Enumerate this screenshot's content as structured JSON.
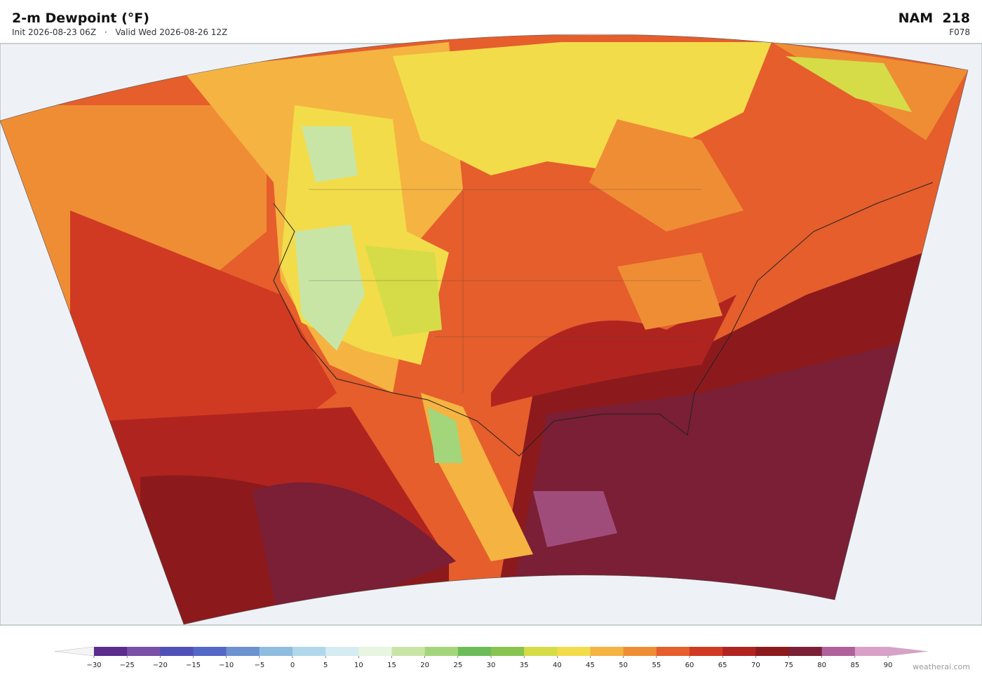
{
  "header": {
    "title": "2-m Dewpoint  (°F)",
    "init": "Init 2026-08-23 06Z",
    "separator": "·",
    "valid": "Valid Wed 2026-08-26 12Z",
    "model": "NAM  218",
    "forecast_hour": "F078"
  },
  "colorbar": {
    "ticks": [
      {
        "value": -30,
        "label": "−30"
      },
      {
        "value": -25,
        "label": "−25"
      },
      {
        "value": -20,
        "label": "−20"
      },
      {
        "value": -15,
        "label": "−15"
      },
      {
        "value": -10,
        "label": "−10"
      },
      {
        "value": -5,
        "label": "−5"
      },
      0,
      5,
      10,
      15,
      20,
      25,
      30,
      35,
      40,
      45,
      50,
      55,
      60,
      65,
      70,
      75,
      80,
      85,
      90
    ],
    "colors": [
      "#5b2d8e",
      "#7a4fa8",
      "#5051b8",
      "#5468c8",
      "#6c93d0",
      "#8fbde0",
      "#b0d8ea",
      "#d5ecf2",
      "#e8f5e0",
      "#c9e5a6",
      "#a3d67a",
      "#6cbd5a",
      "#88c450",
      "#d5dc48",
      "#f2dc4a",
      "#f5b342",
      "#ef8d35",
      "#e55e2c",
      "#d13a22",
      "#b02420",
      "#8c1a1c",
      "#7a1f35",
      "#b0609a",
      "#d9a0c8"
    ],
    "under_color": "#f4f4f4",
    "over_color": "#d9a0c8"
  },
  "watermark": "weatherai.com"
}
